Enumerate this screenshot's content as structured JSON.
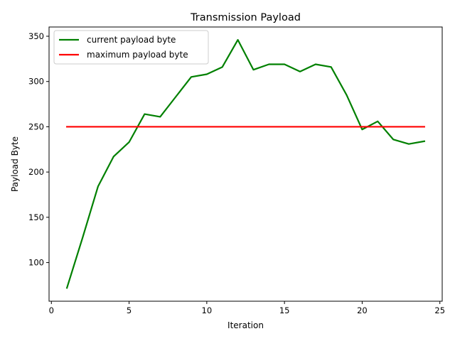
{
  "chart_data": {
    "type": "line",
    "title": "Transmission Payload",
    "xlabel": "Iteration",
    "ylabel": "Payload Byte",
    "xlim": [
      -0.15,
      25.15
    ],
    "ylim": [
      57.3,
      360.2
    ],
    "xticks": [
      0,
      5,
      10,
      15,
      20,
      25
    ],
    "yticks": [
      100,
      150,
      200,
      250,
      300,
      350
    ],
    "grid": false,
    "legend_position": "top-left",
    "x": [
      1,
      2,
      3,
      4,
      5,
      6,
      7,
      8,
      9,
      10,
      11,
      12,
      13,
      14,
      15,
      16,
      17,
      18,
      19,
      20,
      21,
      22,
      23,
      24
    ],
    "series": [
      {
        "name": "current payload byte",
        "color": "#008000",
        "values": [
          72,
          127,
          184,
          217,
          233,
          264,
          261,
          283,
          305,
          308,
          316,
          346,
          313,
          319,
          319,
          311,
          319,
          316,
          285,
          247,
          256,
          236,
          231,
          234
        ]
      },
      {
        "name": "maximum payload byte",
        "color": "#ff0000",
        "values": [
          250,
          250,
          250,
          250,
          250,
          250,
          250,
          250,
          250,
          250,
          250,
          250,
          250,
          250,
          250,
          250,
          250,
          250,
          250,
          250,
          250,
          250,
          250,
          250
        ]
      }
    ]
  }
}
